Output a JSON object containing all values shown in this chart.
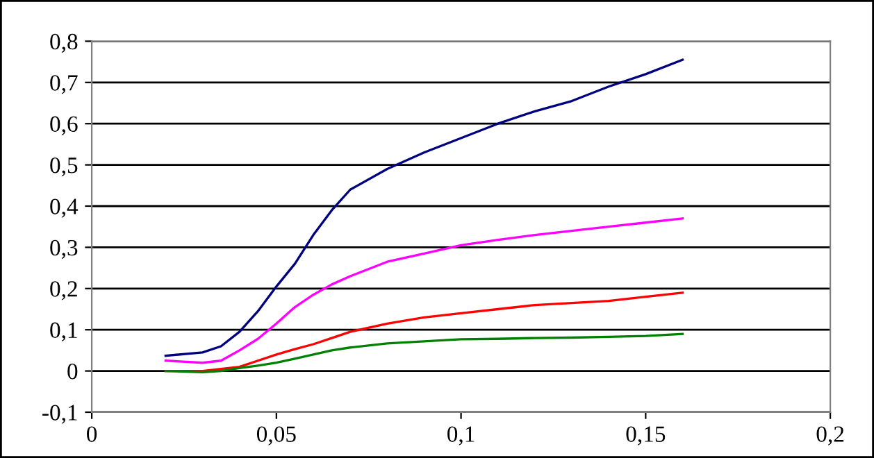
{
  "chart_data": {
    "type": "line",
    "x": [
      0.02,
      0.03,
      0.035,
      0.04,
      0.045,
      0.05,
      0.055,
      0.06,
      0.065,
      0.07,
      0.08,
      0.09,
      0.1,
      0.11,
      0.12,
      0.13,
      0.14,
      0.15,
      0.16
    ],
    "series": [
      {
        "color": "#000080",
        "values": [
          0.037,
          0.045,
          0.06,
          0.095,
          0.145,
          0.205,
          0.26,
          0.33,
          0.39,
          0.44,
          0.49,
          0.53,
          0.565,
          0.6,
          0.63,
          0.655,
          0.69,
          0.72,
          0.755
        ]
      },
      {
        "color": "#ff00ff",
        "values": [
          0.025,
          0.02,
          0.025,
          0.05,
          0.078,
          0.115,
          0.155,
          0.185,
          0.21,
          0.23,
          0.265,
          0.285,
          0.305,
          0.318,
          0.33,
          0.34,
          0.35,
          0.36,
          0.37
        ]
      },
      {
        "color": "#ff0000",
        "values": [
          0,
          0,
          0.005,
          0.01,
          0.025,
          0.04,
          0.053,
          0.065,
          0.08,
          0.095,
          0.115,
          0.13,
          0.14,
          0.15,
          0.16,
          0.165,
          0.17,
          0.18,
          0.19
        ]
      },
      {
        "color": "#008000",
        "values": [
          0,
          -0.003,
          0,
          0.007,
          0.013,
          0.02,
          0.03,
          0.04,
          0.05,
          0.057,
          0.067,
          0.072,
          0.077,
          0.078,
          0.08,
          0.081,
          0.083,
          0.085,
          0.09
        ]
      }
    ],
    "xlim": [
      0,
      0.2
    ],
    "ylim": [
      -0.1,
      0.8
    ],
    "xticks": [
      0,
      {
        "value": 0.05,
        "label": "0,05"
      },
      {
        "value": 0.1,
        "label": "0,1"
      },
      {
        "value": 0.15,
        "label": "0,15"
      },
      {
        "value": 0.2,
        "label": "0,2"
      }
    ],
    "yticks": [
      {
        "value": -0.1,
        "label": "-0,1"
      },
      0,
      {
        "value": 0.1,
        "label": "0,1"
      },
      {
        "value": 0.2,
        "label": "0,2"
      },
      {
        "value": 0.3,
        "label": "0,3"
      },
      {
        "value": 0.4,
        "label": "0,4"
      },
      {
        "value": 0.5,
        "label": "0,5"
      },
      {
        "value": 0.6,
        "label": "0,6"
      },
      {
        "value": 0.7,
        "label": "0,7"
      },
      {
        "value": 0.8,
        "label": "0,8"
      }
    ],
    "grid": "y",
    "marker": "none",
    "line_style": "solid"
  }
}
